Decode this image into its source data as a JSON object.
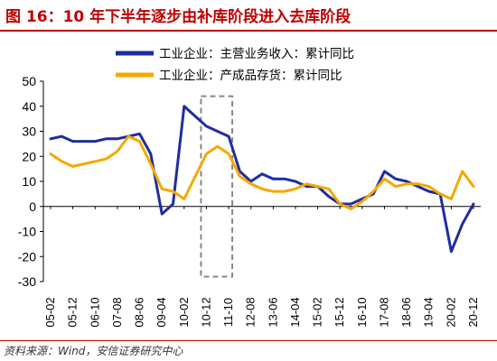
{
  "header": {
    "title": "图 16：10 年下半年逐步由补库阶段进入去库阶段"
  },
  "footer": {
    "source": "资料来源：Wind，安信证券研究中心"
  },
  "colors": {
    "series_revenue": "#1f2e9e",
    "series_inventory": "#f5a800",
    "accent": "#c00000",
    "highlight_box": "#888888"
  },
  "chart_data": {
    "type": "line",
    "title": "",
    "xlabel": "",
    "ylabel": "",
    "ylim": [
      -30,
      50
    ],
    "yticks": [
      "50",
      "40",
      "30",
      "20",
      "10",
      "0",
      "-10",
      "-20",
      "-30"
    ],
    "xticks": [
      "05-02",
      "05-12",
      "06-10",
      "07-08",
      "08-06",
      "09-04",
      "10-02",
      "10-12",
      "11-10",
      "12-08",
      "13-06",
      "14-04",
      "15-02",
      "15-12",
      "16-10",
      "17-08",
      "18-06",
      "19-04",
      "20-02",
      "20-12"
    ],
    "x": [
      "05-02",
      "05-07",
      "05-12",
      "06-05",
      "06-10",
      "07-03",
      "07-08",
      "08-01",
      "08-06",
      "08-11",
      "09-04",
      "09-09",
      "10-02",
      "10-07",
      "10-12",
      "11-05",
      "11-10",
      "12-03",
      "12-08",
      "13-01",
      "13-06",
      "13-11",
      "14-04",
      "14-09",
      "15-02",
      "15-07",
      "15-12",
      "16-05",
      "16-10",
      "17-03",
      "17-08",
      "18-01",
      "18-06",
      "18-11",
      "19-04",
      "19-09",
      "20-02",
      "20-07",
      "20-12"
    ],
    "series": [
      {
        "name": "工业企业：主营业务收入：累计同比",
        "values": [
          27,
          28,
          26,
          26,
          26,
          27,
          27,
          28,
          29,
          21,
          -3,
          1,
          40,
          36,
          32,
          30,
          28,
          14,
          10,
          13,
          11,
          11,
          10,
          8,
          8,
          4,
          1,
          1,
          3,
          5,
          14,
          11,
          10,
          8,
          6,
          5,
          -18,
          -7,
          1
        ]
      },
      {
        "name": "工业企业：产成品存货：累计同比",
        "values": [
          21,
          18,
          16,
          17,
          18,
          19,
          22,
          28,
          26,
          17,
          7,
          6,
          3,
          12,
          21,
          24,
          21,
          12,
          9,
          7,
          6,
          6,
          7,
          9,
          8,
          7,
          1,
          -1,
          2,
          6,
          11,
          8,
          9,
          9,
          8,
          5,
          3,
          14,
          8
        ]
      }
    ],
    "highlight_range": [
      "10-12",
      "11-10"
    ],
    "legend_position": "top",
    "grid": false
  }
}
